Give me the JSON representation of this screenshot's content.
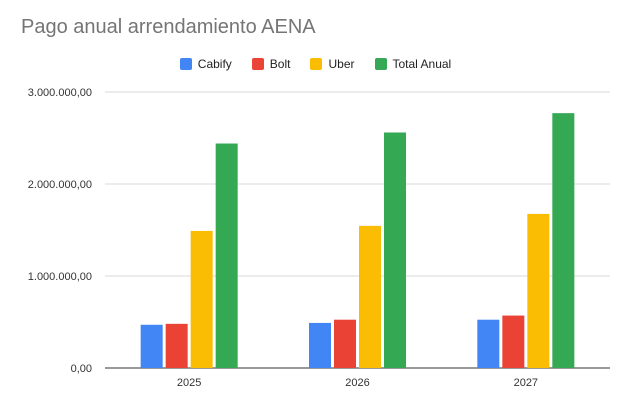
{
  "chart_data": {
    "type": "bar",
    "title": "Pago anual arrendamiento AENA",
    "xlabel": "",
    "ylabel": "",
    "categories": [
      "2025",
      "2026",
      "2027"
    ],
    "ylim": [
      0,
      3000000
    ],
    "yticks": [
      0,
      1000000,
      2000000,
      3000000
    ],
    "ytick_labels": [
      "0,00",
      "1.000.000,00",
      "2.000.000,00",
      "3.000.000,00"
    ],
    "grid": true,
    "legend_position": "top-center",
    "series": [
      {
        "name": "Cabify",
        "color": "#4285F4",
        "values": [
          470000,
          490000,
          525000
        ]
      },
      {
        "name": "Bolt",
        "color": "#EA4335",
        "values": [
          480000,
          525000,
          570000
        ]
      },
      {
        "name": "Uber",
        "color": "#FBBC04",
        "values": [
          1490000,
          1545000,
          1675000
        ]
      },
      {
        "name": "Total Anual",
        "color": "#34A853",
        "values": [
          2440000,
          2560000,
          2770000
        ]
      }
    ]
  }
}
